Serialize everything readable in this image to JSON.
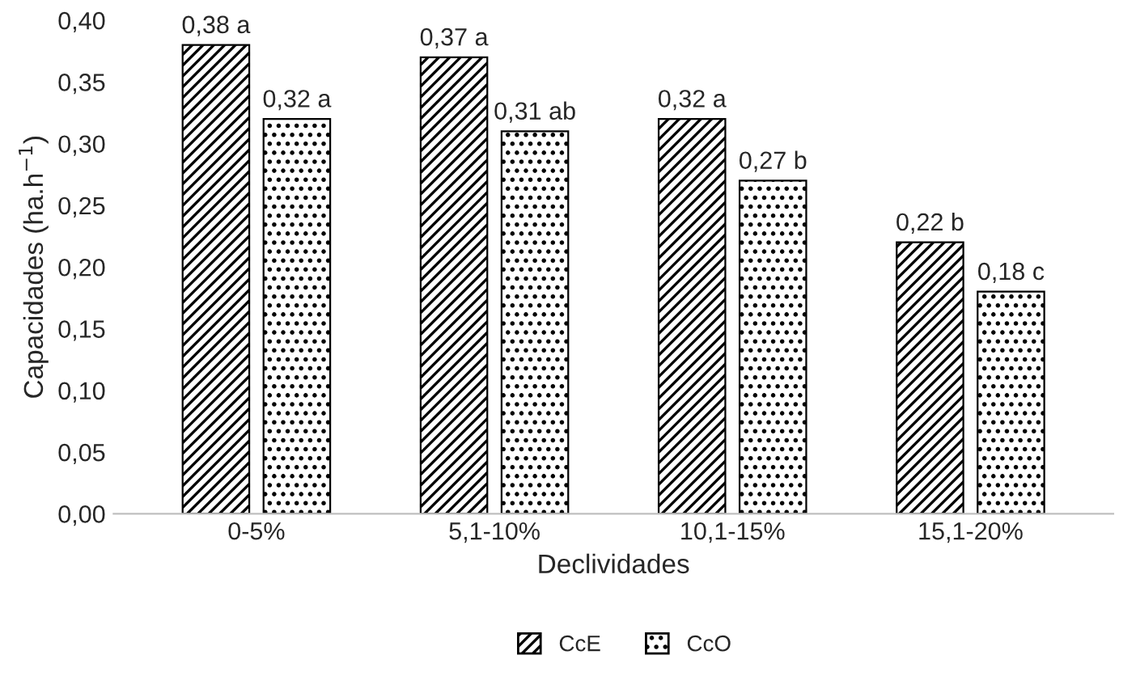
{
  "chart_data": {
    "type": "bar",
    "xlabel": "Declividades",
    "ylabel": "Capacidades (ha.h$^{−1}$)",
    "categories": [
      "0-5%",
      "5,1-10%",
      "10,1-15%",
      "15,1-20%"
    ],
    "series": [
      {
        "name": "CcE",
        "color": "#000000",
        "values": [
          0.38,
          0.37,
          0.32,
          0.22
        ],
        "value_labels": [
          "0,38 a",
          "0,37 a",
          "0,32 a",
          "0,22 b"
        ]
      },
      {
        "name": "CcO",
        "color": "#000000",
        "values": [
          0.32,
          0.31,
          0.27,
          0.18
        ],
        "value_labels": [
          "0,32 a",
          "0,31 ab",
          "0,27 b",
          "0,18 c"
        ]
      }
    ],
    "ylim": [
      0,
      0.4
    ],
    "yticks": [
      {
        "value": 0,
        "label": "0,00"
      },
      {
        "value": 0.05,
        "label": "0,05"
      },
      {
        "value": 0.1,
        "label": "0,10"
      },
      {
        "value": 0.15,
        "label": "0,15"
      },
      {
        "value": 0.2,
        "label": "0,20"
      },
      {
        "value": 0.25,
        "label": "0,25"
      },
      {
        "value": 0.3,
        "label": "0,30"
      },
      {
        "value": 0.35,
        "label": "0,35"
      },
      {
        "value": 0.4,
        "label": "0,40"
      }
    ],
    "legend": "bottom",
    "grid": false
  }
}
